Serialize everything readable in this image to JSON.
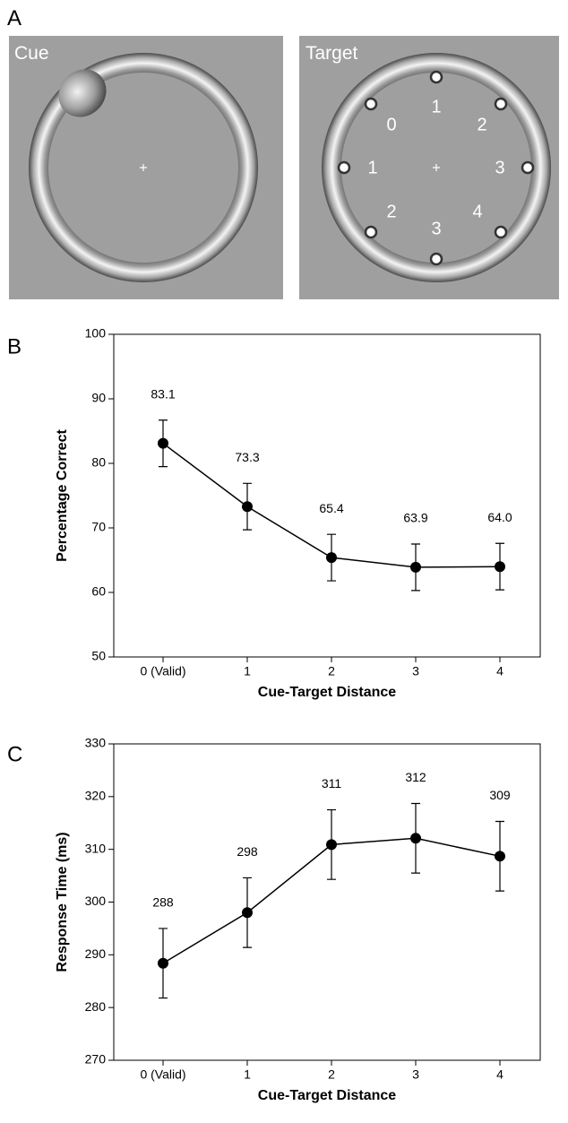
{
  "stimulus": {
    "panel_label": "A",
    "cue_label": "Cue",
    "target_label": "Target",
    "target_numbers": [
      "0",
      "1",
      "2",
      "1",
      "3",
      "2",
      "3",
      "4"
    ]
  },
  "chart_data": [
    {
      "type": "line",
      "panel_label": "B",
      "y_label": "Percentage Correct",
      "x_label": "Cue-Target Distance",
      "categories": [
        "0 (Valid)",
        "1",
        "2",
        "3",
        "4"
      ],
      "values": [
        83.1,
        73.3,
        65.4,
        63.9,
        64.0
      ],
      "value_labels": [
        "83.1",
        "73.3",
        "65.4",
        "63.9",
        "64.0"
      ],
      "errors": [
        3.6,
        3.6,
        3.6,
        3.6,
        3.6
      ],
      "color": "#000000",
      "ylim": [
        50,
        100
      ],
      "yticks": [
        50,
        60,
        70,
        80,
        90,
        100
      ]
    },
    {
      "type": "line",
      "panel_label": "C",
      "y_label": "Response Time (ms)",
      "x_label": "Cue-Target Distance",
      "categories": [
        "0 (Valid)",
        "1",
        "2",
        "3",
        "4"
      ],
      "values": [
        288.4,
        298.0,
        310.9,
        312.1,
        308.7
      ],
      "value_labels": [
        "288",
        "298",
        "311",
        "312",
        "309"
      ],
      "errors": [
        6.6,
        6.6,
        6.6,
        6.6,
        6.6
      ],
      "color": "#000000",
      "ylim": [
        270,
        330
      ],
      "yticks": [
        270,
        280,
        290,
        300,
        310,
        320,
        330
      ]
    }
  ]
}
